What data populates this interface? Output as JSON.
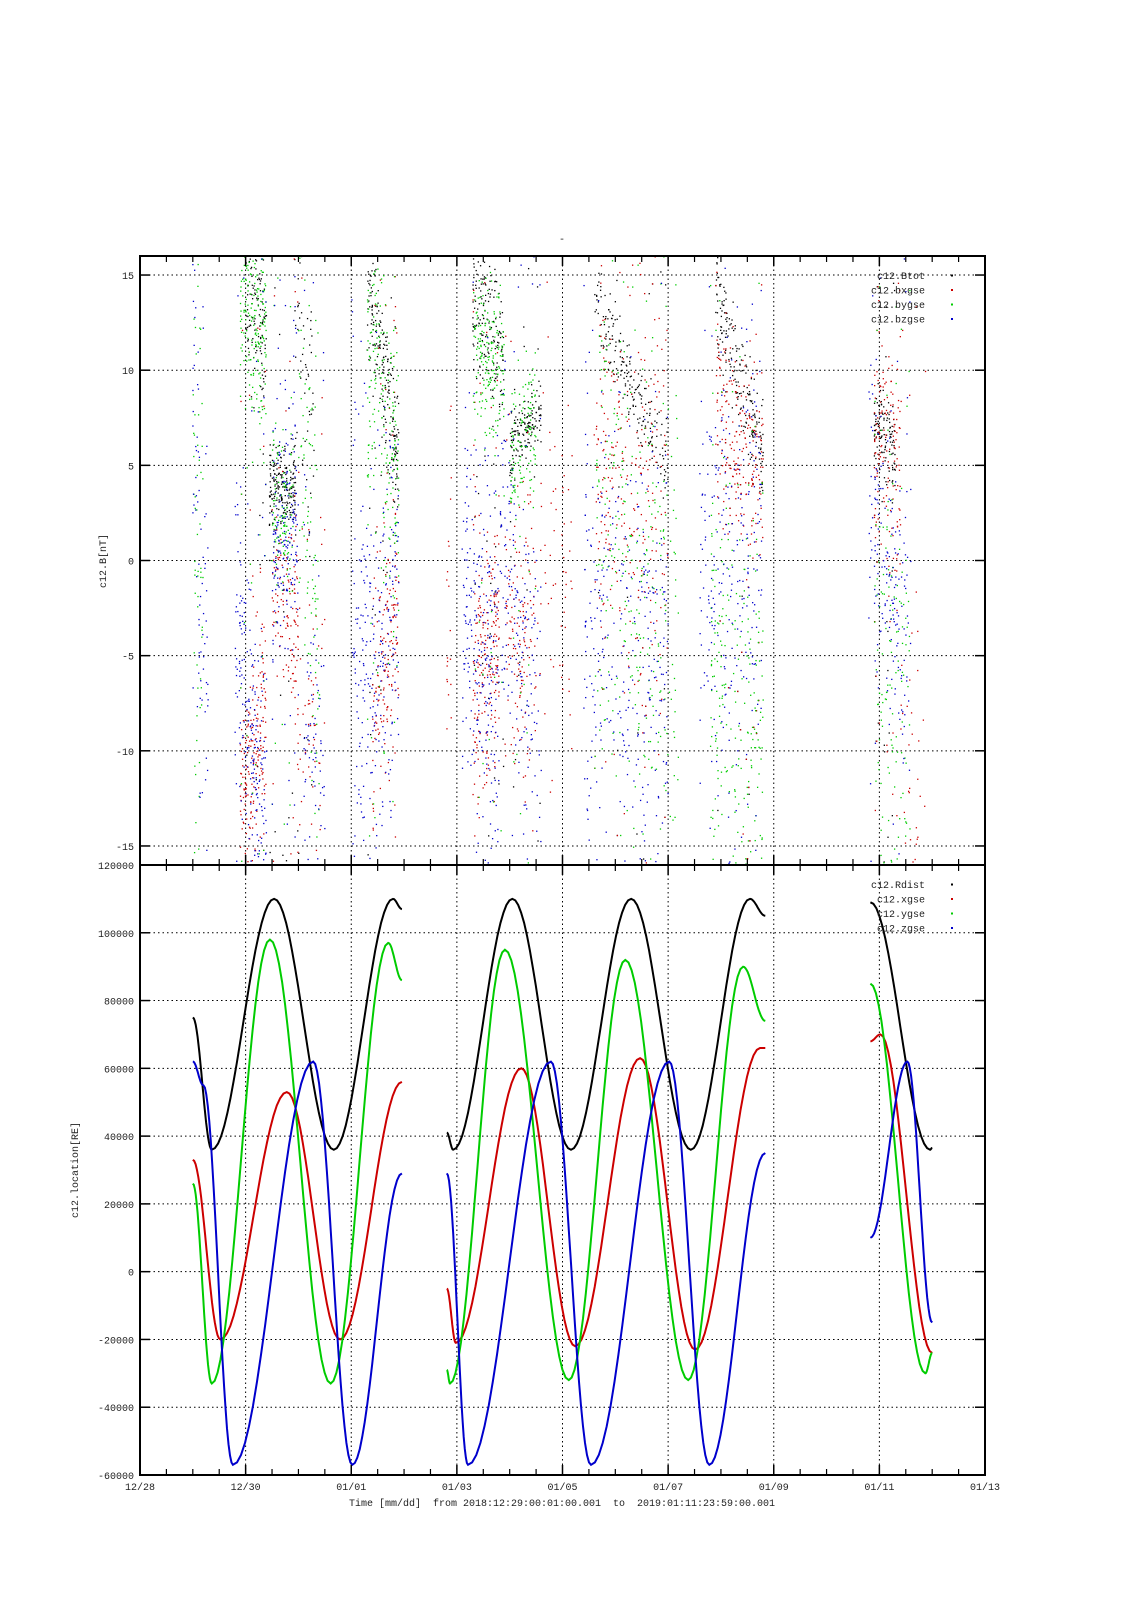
{
  "chart_data": [
    {
      "type": "scatter",
      "title": "-",
      "ylabel": "c12.B[nT]",
      "xlabel": "",
      "x_unit": "days since 12/28 00:00",
      "xlim": [
        0,
        16
      ],
      "ylim": [
        -16,
        16
      ],
      "yticks": [
        -15,
        -10,
        -5,
        0,
        5,
        10,
        15
      ],
      "grid": true,
      "legend_position": "top-right",
      "series": [
        {
          "name": "c12.Btot",
          "color": "#000000",
          "clusters": [
            [
              2.0,
              2.4,
              14,
              12,
              2.0,
              120
            ],
            [
              2.45,
              2.95,
              4,
              4,
              1.0,
              200
            ],
            [
              2.9,
              3.3,
              12,
              8,
              3,
              60
            ],
            [
              4.3,
              4.9,
              15,
              5,
              2.0,
              220
            ],
            [
              6.3,
              6.9,
              14,
              11,
              2.0,
              200
            ],
            [
              7.0,
              7.6,
              6,
              8,
              1.0,
              160
            ],
            [
              8.6,
              10.0,
              14,
              5,
              1.0,
              220
            ],
            [
              10.9,
              11.8,
              14,
              5,
              1.5,
              220
            ],
            [
              13.9,
              14.3,
              7,
              6,
              1.2,
              140
            ]
          ]
        },
        {
          "name": "c12.bxgse",
          "color": "#cc0000",
          "clusters": [
            [
              1.9,
              2.4,
              -12,
              -8,
              2.5,
              200
            ],
            [
              2.5,
              3.0,
              -1,
              -3,
              2.5,
              120
            ],
            [
              2.9,
              3.5,
              -6,
              -8,
              5,
              80
            ],
            [
              4.4,
              4.9,
              -8,
              -2,
              3,
              180
            ],
            [
              6.3,
              6.8,
              -6,
              -4,
              3,
              220
            ],
            [
              6.9,
              7.5,
              -3,
              -4,
              4,
              140
            ],
            [
              7.5,
              8.2,
              2,
              -3,
              5,
              60
            ],
            [
              8.6,
              10.0,
              6,
              4,
              5,
              280
            ],
            [
              10.9,
              11.8,
              8,
              4,
              3,
              240
            ],
            [
              13.9,
              14.4,
              6,
              5,
              3,
              160
            ],
            [
              14.4,
              14.9,
              -10,
              -14,
              4,
              40
            ],
            [
              5.8,
              5.9,
              -5,
              0,
              5,
              20
            ]
          ]
        },
        {
          "name": "c12.bygse",
          "color": "#00cc00",
          "clusters": [
            [
              1.0,
              1.2,
              3,
              0,
              8,
              60
            ],
            [
              1.9,
              2.4,
              14,
              12,
              3,
              220
            ],
            [
              2.5,
              2.9,
              3,
              2,
              2,
              120
            ],
            [
              3.0,
              3.4,
              10,
              -6,
              5,
              100
            ],
            [
              4.3,
              4.9,
              13,
              3,
              4,
              220
            ],
            [
              6.3,
              6.9,
              12,
              10,
              2,
              200
            ],
            [
              7.0,
              7.5,
              5,
              8,
              2,
              140
            ],
            [
              8.6,
              10.2,
              4,
              -5,
              7,
              300
            ],
            [
              10.8,
              11.8,
              -6,
              -10,
              6,
              240
            ],
            [
              13.9,
              14.6,
              -5,
              -8,
              6,
              140
            ]
          ]
        },
        {
          "name": "c12.bzgse",
          "color": "#0000cc",
          "clusters": [
            [
              1.0,
              1.3,
              10,
              -10,
              6,
              80
            ],
            [
              1.8,
              2.4,
              -3,
              -14,
              4,
              220
            ],
            [
              2.5,
              3.0,
              1,
              2,
              3,
              200
            ],
            [
              3.1,
              3.5,
              -8,
              -14,
              4,
              80
            ],
            [
              4.0,
              4.9,
              -6,
              -2,
              5,
              260
            ],
            [
              6.1,
              6.8,
              0,
              -8,
              5,
              240
            ],
            [
              6.8,
              7.6,
              2,
              -8,
              4,
              180
            ],
            [
              8.4,
              10.0,
              -4,
              -6,
              6,
              320
            ],
            [
              10.6,
              11.8,
              -1,
              1,
              6,
              260
            ],
            [
              13.8,
              14.6,
              3,
              -4,
              4,
              180
            ]
          ]
        }
      ]
    },
    {
      "type": "line",
      "ylabel": "c12.location[RE]",
      "xlabel": "Time [mm/dd]  from 2018:12:29:00:01:00.001  to  2019:01:11:23:59:00.001",
      "x_unit": "days since 12/28 00:00",
      "xlim": [
        0,
        16
      ],
      "ylim": [
        -60000,
        120000
      ],
      "yticks": [
        -60000,
        -40000,
        -20000,
        0,
        20000,
        40000,
        60000,
        80000,
        100000,
        120000
      ],
      "xticks": [
        0,
        2,
        4,
        6,
        8,
        10,
        12,
        14,
        16
      ],
      "xticklabels": [
        "12/28",
        "12/30",
        "01/01",
        "01/03",
        "01/05",
        "01/07",
        "01/09",
        "01/11",
        "01/13"
      ],
      "grid": true,
      "legend_position": "top-right",
      "series": [
        {
          "name": "c12.Rdist",
          "color": "#000000",
          "segments": [
            [
              [
                1.0,
                75000
              ],
              [
                1.36,
                36000
              ],
              [
                2.54,
                110000
              ],
              [
                3.67,
                36000
              ],
              [
                4.79,
                110000
              ],
              [
                4.96,
                107000
              ]
            ],
            [
              [
                5.81,
                41000
              ],
              [
                5.93,
                36000
              ],
              [
                7.05,
                110000
              ],
              [
                8.16,
                36000
              ],
              [
                9.3,
                110000
              ],
              [
                10.43,
                36000
              ],
              [
                11.55,
                110000
              ],
              [
                11.84,
                105000
              ]
            ],
            [
              [
                13.83,
                109000
              ],
              [
                14.96,
                36000
              ],
              [
                15.0,
                36500
              ]
            ]
          ]
        },
        {
          "name": "c12.xgse",
          "color": "#cc0000",
          "segments": [
            [
              [
                1.0,
                33000
              ],
              [
                1.52,
                -20000
              ],
              [
                2.78,
                53000
              ],
              [
                3.79,
                -20000
              ],
              [
                4.96,
                56000
              ]
            ],
            [
              [
                5.81,
                -5000
              ],
              [
                5.98,
                -21000
              ],
              [
                7.22,
                60000
              ],
              [
                8.24,
                -22000
              ],
              [
                9.47,
                63000
              ],
              [
                10.51,
                -23000
              ],
              [
                11.74,
                66000
              ],
              [
                11.84,
                66000
              ]
            ],
            [
              [
                13.83,
                68000
              ],
              [
                14.02,
                70000
              ],
              [
                15.0,
                -24000
              ]
            ]
          ]
        },
        {
          "name": "c12.ygse",
          "color": "#00cc00",
          "segments": [
            [
              [
                1.0,
                26000
              ],
              [
                1.36,
                -33000
              ],
              [
                2.46,
                98000
              ],
              [
                3.61,
                -33000
              ],
              [
                4.7,
                97000
              ],
              [
                4.96,
                86000
              ]
            ],
            [
              [
                5.81,
                -29000
              ],
              [
                5.87,
                -33000
              ],
              [
                6.91,
                95000
              ],
              [
                8.12,
                -32000
              ],
              [
                9.19,
                92000
              ],
              [
                10.38,
                -32000
              ],
              [
                11.42,
                90000
              ],
              [
                11.84,
                74000
              ]
            ],
            [
              [
                13.83,
                85000
              ],
              [
                14.87,
                -30000
              ],
              [
                15.0,
                -24000
              ]
            ]
          ]
        },
        {
          "name": "c12.zgse",
          "color": "#0000cc",
          "segments": [
            [
              [
                1.0,
                62000
              ],
              [
                1.2,
                55000
              ],
              [
                1.76,
                -57000
              ],
              [
                3.28,
                62000
              ],
              [
                4.02,
                -57000
              ],
              [
                4.96,
                29000
              ]
            ],
            [
              [
                5.81,
                29000
              ],
              [
                6.21,
                -57000
              ],
              [
                7.78,
                62000
              ],
              [
                8.54,
                -57000
              ],
              [
                10.02,
                62000
              ],
              [
                10.78,
                -57000
              ],
              [
                11.84,
                35000
              ]
            ],
            [
              [
                13.83,
                10000
              ],
              [
                14.53,
                62000
              ],
              [
                15.0,
                -15000
              ]
            ]
          ]
        }
      ]
    }
  ]
}
